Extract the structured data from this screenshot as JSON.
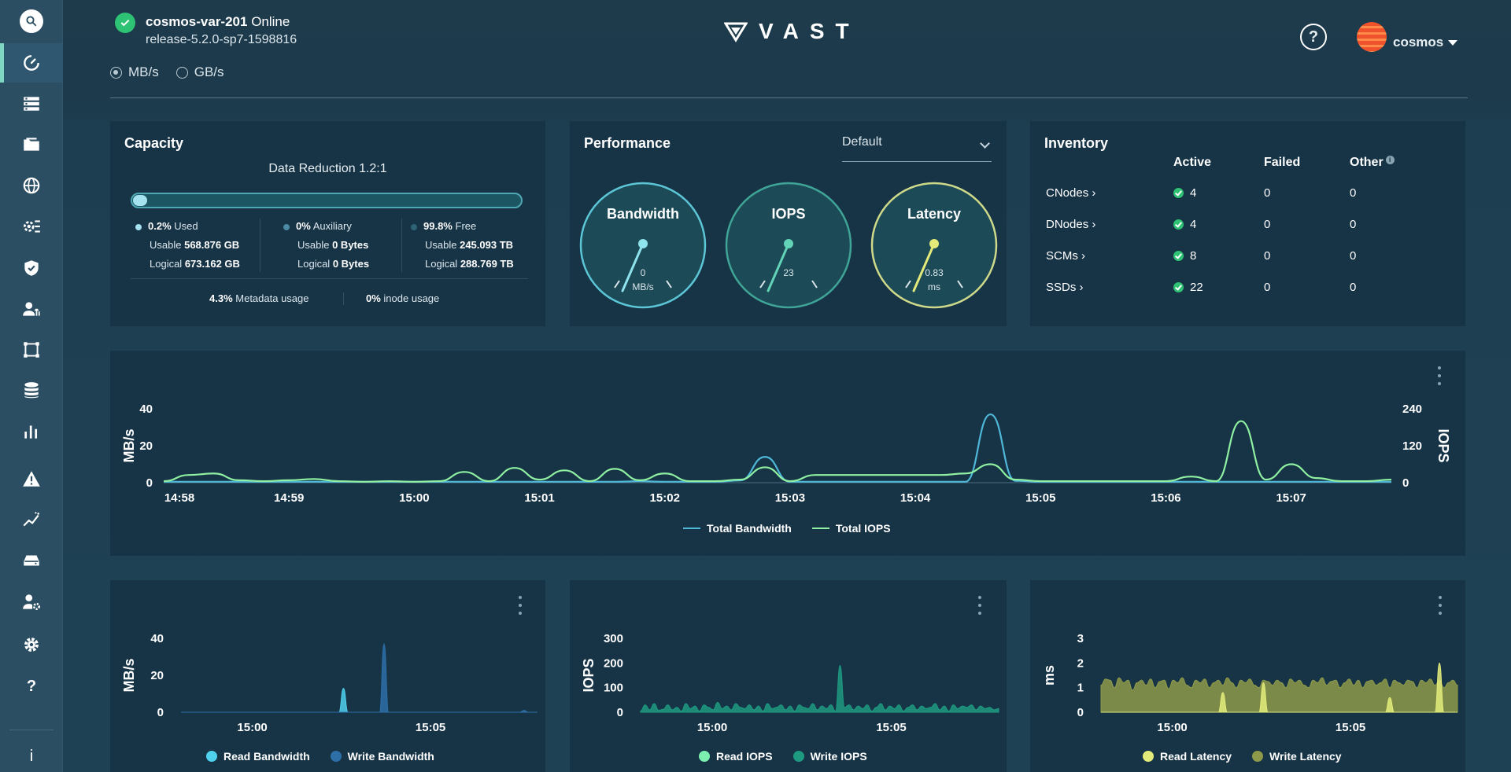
{
  "header": {
    "cluster_name": "cosmos-var-201",
    "cluster_status": "Online",
    "release": "release-5.2.0-sp7-1598816",
    "units": [
      {
        "label": "MB/s",
        "selected": true
      },
      {
        "label": "GB/s",
        "selected": false
      }
    ],
    "logo_text": "VAST",
    "help_label": "?",
    "user": "cosmos"
  },
  "sidebar": {
    "icons": [
      "search-icon",
      "dashboard-icon",
      "servers-icon",
      "folder-icon",
      "globe-icon",
      "settings-sliders-icon",
      "shield-icon",
      "user-transfer-icon",
      "crop-icon",
      "database-icon",
      "analytics-icon",
      "alert-icon",
      "trend-icon",
      "drive-icon",
      "user-settings-icon",
      "gear-icon",
      "help-icon",
      "info-icon"
    ],
    "help_glyph": "?",
    "info_glyph": "i"
  },
  "capacity": {
    "title": "Capacity",
    "data_reduction": "Data Reduction 1.2:1",
    "used_fraction": 0.002,
    "columns": [
      {
        "pct": "0.2%",
        "label": "Used",
        "usable_label": "Usable",
        "usable": "568.876 GB",
        "logical_label": "Logical",
        "logical": "673.162 GB",
        "color": "#a4e2ef"
      },
      {
        "pct": "0%",
        "label": "Auxiliary",
        "usable_label": "Usable",
        "usable": "0 Bytes",
        "logical_label": "Logical",
        "logical": "0 Bytes",
        "color": "#4a8ba3"
      },
      {
        "pct": "99.8%",
        "label": "Free",
        "usable_label": "Usable",
        "usable": "245.093 TB",
        "logical_label": "Logical",
        "logical": "288.769 TB",
        "color": "#2d6375"
      }
    ],
    "metadata_pct": "4.3%",
    "metadata_label": "Metadata usage",
    "inode_pct": "0%",
    "inode_label": "inode usage"
  },
  "performance": {
    "title": "Performance",
    "preset": "Default",
    "gauges": [
      {
        "title": "Bandwidth",
        "value": "0",
        "unit": "MB/s",
        "level": 0.0,
        "color": "#8fe3ec",
        "ring": "#5cc6d6"
      },
      {
        "title": "IOPS",
        "value": "23",
        "unit": "",
        "level": 0.1,
        "color": "#63d3b8",
        "ring": "#3fa597"
      },
      {
        "title": "Latency",
        "value": "0.83",
        "unit": "ms",
        "level": 0.28,
        "color": "#e3ea7a",
        "ring": "#cfd98a"
      }
    ]
  },
  "inventory": {
    "title": "Inventory",
    "headers": {
      "active": "Active",
      "failed": "Failed",
      "other": "Other"
    },
    "info_glyph": "i",
    "rows": [
      {
        "name": "CNodes",
        "active": "4",
        "failed": "0",
        "other": "0"
      },
      {
        "name": "DNodes",
        "active": "4",
        "failed": "0",
        "other": "0"
      },
      {
        "name": "SCMs",
        "active": "8",
        "failed": "0",
        "other": "0"
      },
      {
        "name": "SSDs",
        "active": "22",
        "failed": "0",
        "other": "0"
      }
    ]
  },
  "chart_data": [
    {
      "type": "line",
      "ylabel": "MB/s",
      "y2label": "IOPS",
      "ylim": [
        0,
        40
      ],
      "y2lim": [
        0,
        240
      ],
      "yticks": [
        "0",
        "20",
        "40"
      ],
      "y2ticks": [
        "0",
        "120",
        "240"
      ],
      "xticks": [
        "14:58",
        "14:59",
        "15:00",
        "15:01",
        "15:02",
        "15:03",
        "15:04",
        "15:05",
        "15:06",
        "15:07"
      ],
      "x": [
        0,
        0.2,
        0.4,
        0.6,
        0.8,
        1.0,
        1.2,
        1.4,
        1.6,
        1.8,
        2.0,
        2.2,
        2.4,
        2.6,
        2.8,
        3.0,
        3.2,
        3.4,
        3.6,
        3.8,
        4.0,
        4.2,
        4.4,
        4.6,
        4.8,
        5.0,
        5.2,
        5.4,
        5.6,
        5.8,
        6.0,
        6.2,
        6.4,
        6.6,
        6.8,
        7.0,
        7.2,
        7.4,
        7.6,
        7.8,
        8.0,
        8.2,
        8.4,
        8.6,
        8.8,
        9.0,
        9.2,
        9.4,
        9.6,
        9.8
      ],
      "series": [
        {
          "name": "Total Bandwidth",
          "axis": "left",
          "color": "#4fb8d8",
          "values": [
            0.5,
            0.5,
            0.5,
            0.5,
            0.5,
            0.5,
            0.5,
            0.5,
            0.5,
            0.5,
            0.5,
            0.5,
            0.5,
            0.5,
            0.5,
            0.5,
            0.5,
            0.5,
            0.5,
            0.8,
            0.5,
            0.5,
            0.5,
            1.2,
            14,
            0.5,
            0.5,
            0.5,
            0.5,
            0.5,
            0.5,
            0.5,
            0.5,
            37,
            1,
            0.5,
            0.5,
            0.5,
            0.5,
            0.5,
            0.5,
            0.5,
            0.5,
            0.5,
            0.5,
            0.5,
            0.5,
            0.5,
            0.5,
            0.5
          ]
        },
        {
          "name": "Total IOPS",
          "axis": "right",
          "color": "#8ef0a0",
          "values": [
            5,
            25,
            30,
            8,
            5,
            8,
            12,
            5,
            3,
            5,
            3,
            5,
            35,
            5,
            48,
            10,
            40,
            5,
            45,
            8,
            30,
            5,
            5,
            10,
            50,
            5,
            25,
            25,
            25,
            25,
            25,
            25,
            30,
            60,
            10,
            5,
            5,
            5,
            5,
            5,
            5,
            20,
            5,
            200,
            10,
            60,
            15,
            5,
            5,
            10
          ]
        }
      ],
      "legend": [
        "Total Bandwidth",
        "Total IOPS"
      ],
      "legend_position": "bottom"
    },
    {
      "type": "area",
      "ylabel": "MB/s",
      "ylim": [
        0,
        40
      ],
      "yticks": [
        "0",
        "20",
        "40"
      ],
      "xticks": [
        "15:00",
        "15:05"
      ],
      "series": [
        {
          "name": "Read Bandwidth",
          "color": "#4fd0ec",
          "values": [
            0,
            0,
            0,
            0,
            0,
            0,
            0,
            0,
            0,
            0,
            0,
            0,
            0,
            0,
            0,
            0,
            0,
            0,
            0,
            0,
            0,
            0,
            0,
            0,
            0,
            0,
            0,
            0,
            0,
            0,
            0,
            0,
            0,
            0,
            0,
            0,
            13,
            0,
            0,
            0,
            0,
            0,
            0,
            0,
            0,
            0,
            0,
            0,
            0,
            0,
            0,
            0,
            0,
            0,
            0,
            0,
            0,
            0,
            0,
            0,
            0,
            0,
            0,
            0,
            0,
            0,
            0,
            0,
            0,
            0,
            0,
            0,
            0,
            0,
            0,
            0,
            0,
            0,
            0,
            0
          ]
        },
        {
          "name": "Write Bandwidth",
          "color": "#2e6fa8",
          "values": [
            0,
            0,
            0,
            0,
            0,
            0,
            0,
            0,
            0,
            0,
            0,
            0,
            0,
            0,
            0,
            0,
            0,
            0,
            0,
            0,
            0,
            0,
            0,
            0,
            0,
            0,
            0,
            0,
            0,
            0,
            0,
            0,
            0,
            0,
            0,
            0,
            0,
            0,
            0,
            0,
            0,
            0,
            0,
            0,
            0,
            37,
            0,
            0,
            0,
            0,
            0,
            0,
            0,
            0,
            0,
            0,
            0,
            0,
            0,
            0,
            0,
            0,
            0,
            0,
            0,
            0,
            0,
            0,
            0,
            0,
            0,
            0,
            0,
            0,
            0,
            0,
            1,
            0,
            0,
            0
          ]
        }
      ],
      "legend": [
        "Read Bandwidth",
        "Write Bandwidth"
      ]
    },
    {
      "type": "area",
      "ylabel": "IOPS",
      "ylim": [
        0,
        300
      ],
      "yticks": [
        "0",
        "100",
        "200",
        "300"
      ],
      "xticks": [
        "15:00",
        "15:05"
      ],
      "series": [
        {
          "name": "Read IOPS",
          "color": "#7df0b0",
          "values": [
            0,
            0,
            0,
            0,
            0,
            0,
            0,
            0,
            0,
            0,
            0,
            0,
            0,
            0,
            0,
            0,
            0,
            0,
            0,
            0,
            0,
            0,
            0,
            0,
            0,
            0,
            0,
            0,
            0,
            0,
            0,
            0,
            0,
            0,
            0,
            0,
            0,
            0,
            0,
            0,
            0,
            0,
            0,
            0,
            0,
            0,
            0,
            0,
            0,
            0,
            0,
            0,
            0,
            0,
            0,
            0,
            0,
            0,
            0,
            0,
            0,
            0,
            0,
            0,
            0,
            0,
            0,
            0,
            0,
            0,
            0,
            0,
            0,
            0,
            0,
            0,
            0,
            0,
            0,
            0
          ]
        },
        {
          "name": "Write IOPS",
          "color": "#1e9a80",
          "values": [
            5,
            30,
            10,
            35,
            8,
            12,
            30,
            10,
            20,
            5,
            35,
            15,
            25,
            5,
            30,
            20,
            10,
            40,
            15,
            25,
            10,
            35,
            20,
            15,
            30,
            10,
            25,
            5,
            35,
            15,
            20,
            30,
            10,
            25,
            5,
            30,
            20,
            15,
            35,
            10,
            25,
            15,
            30,
            5,
            190,
            20,
            30,
            10,
            25,
            15,
            30,
            5,
            20,
            35,
            10,
            25,
            15,
            30,
            5,
            20,
            30,
            10,
            25,
            15,
            20,
            35,
            10,
            25,
            5,
            30,
            15,
            25,
            20,
            30,
            10,
            25,
            15,
            20,
            10,
            15
          ]
        }
      ],
      "legend": [
        "Read IOPS",
        "Write IOPS"
      ]
    },
    {
      "type": "area",
      "ylabel": "ms",
      "ylim": [
        0,
        3
      ],
      "yticks": [
        "0",
        "1",
        "2",
        "3"
      ],
      "xticks": [
        "15:00",
        "15:05"
      ],
      "series": [
        {
          "name": "Write Latency",
          "color": "#8e9a4a",
          "values": [
            1.1,
            1.35,
            1.3,
            1.0,
            1.4,
            1.2,
            1.3,
            0.9,
            1.2,
            1.3,
            1.1,
            1.35,
            1.0,
            1.25,
            1.3,
            0.95,
            1.3,
            1.2,
            1.4,
            1.1,
            1.0,
            1.3,
            1.2,
            1.35,
            1.0,
            1.2,
            1.3,
            1.1,
            1.4,
            1.2,
            1.0,
            1.3,
            1.2,
            1.35,
            1.1,
            1.0,
            1.3,
            1.25,
            1.1,
            1.3,
            1.2,
            1.0,
            1.35,
            1.2,
            1.3,
            1.1,
            1.0,
            1.3,
            1.2,
            1.4,
            1.1,
            1.25,
            1.3,
            1.0,
            1.2,
            1.35,
            1.1,
            1.3,
            1.0,
            1.25,
            1.3,
            1.1,
            1.2,
            1.35,
            1.0,
            1.3,
            1.2,
            1.1,
            1.3,
            1.25,
            1.0,
            1.3,
            1.2,
            1.35,
            1.1,
            1.3,
            1.0,
            1.2,
            1.3,
            1.1
          ]
        },
        {
          "name": "Read Latency",
          "color": "#e3ec7a",
          "values": [
            0,
            0,
            0,
            0,
            0,
            0,
            0,
            0,
            0,
            0,
            0,
            0,
            0,
            0,
            0,
            0,
            0,
            0,
            0,
            0,
            0,
            0,
            0,
            0,
            0,
            0,
            0,
            0.8,
            0,
            0,
            0,
            0,
            0,
            0,
            0,
            0,
            1.2,
            0,
            0,
            0,
            0,
            0,
            0,
            0,
            0,
            0,
            0,
            0,
            0,
            0,
            0,
            0,
            0,
            0,
            0,
            0,
            0,
            0,
            0,
            0,
            0,
            0,
            0,
            0,
            0.6,
            0,
            0,
            0,
            0,
            0,
            0,
            0,
            0,
            0,
            0,
            2.0,
            0,
            0,
            0,
            0
          ]
        }
      ],
      "legend": [
        "Read Latency",
        "Write Latency"
      ]
    }
  ]
}
